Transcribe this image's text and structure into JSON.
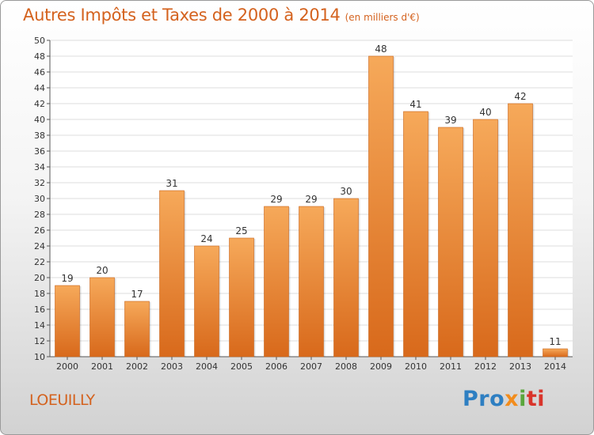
{
  "header": {
    "title": "Autres Impôts et Taxes de 2000 à 2014",
    "subtitle": "(en milliers d'€)"
  },
  "footer": {
    "commune": "LOEUILLY",
    "logo_parts": [
      "Pro",
      "x",
      "i",
      "ti"
    ]
  },
  "colors": {
    "title": "#d4621e",
    "bar_top": "#f6a95a",
    "bar_bottom": "#d8691b",
    "grid": "#dddddd",
    "axis": "#555555"
  },
  "chart_data": {
    "type": "bar",
    "categories": [
      "2000",
      "2001",
      "2002",
      "2003",
      "2004",
      "2005",
      "2006",
      "2007",
      "2008",
      "2009",
      "2010",
      "2011",
      "2012",
      "2013",
      "2014"
    ],
    "values": [
      19,
      20,
      17,
      31,
      24,
      25,
      29,
      29,
      30,
      48,
      41,
      39,
      40,
      42,
      11
    ],
    "data_labels": [
      "19",
      "20",
      "17",
      "31",
      "24",
      "25",
      "29",
      "29",
      "30",
      "48",
      "41",
      "39",
      "40",
      "42",
      "11"
    ],
    "ylim": [
      10,
      50
    ],
    "yticks": [
      10,
      12,
      14,
      16,
      18,
      20,
      22,
      24,
      26,
      28,
      30,
      32,
      34,
      36,
      38,
      40,
      42,
      44,
      46,
      48,
      50
    ],
    "grid": true,
    "legend": "none"
  }
}
